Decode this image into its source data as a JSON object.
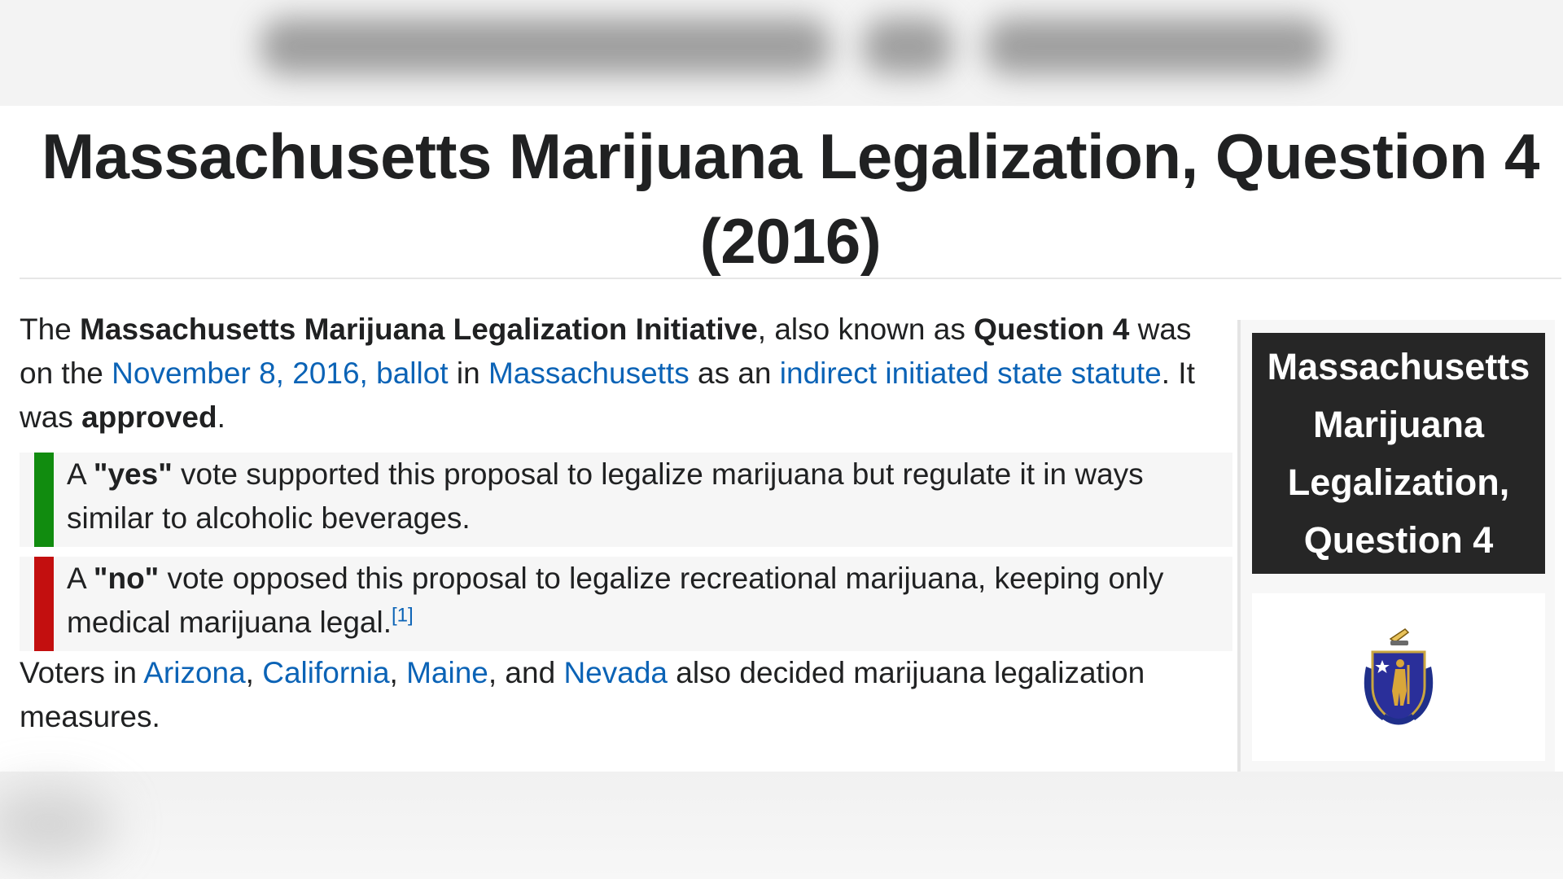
{
  "page": {
    "title": "Massachusetts Marijuana Legalization, Question 4 (2016)"
  },
  "intro": {
    "p1": "The ",
    "b1": "Massachusetts Marijuana Legalization Initiative",
    "p2": ", also known as ",
    "b2": "Question 4",
    "p3": " was on the ",
    "link_ballot": "November 8, 2016, ballot",
    "p4": " in ",
    "link_state": "Massachusetts",
    "p5": " as an ",
    "link_statute": "indirect initiated state statute",
    "p6": ". It was ",
    "b3": "approved",
    "p7": "."
  },
  "yes_box": {
    "lead": "A ",
    "bold": "\"yes\"",
    "text": " vote supported this proposal to legalize marijuana but regulate it in ways similar to alcoholic beverages.",
    "bar_color": "#118c0f"
  },
  "no_box": {
    "lead": "A ",
    "bold": "\"no\"",
    "text": " vote opposed this proposal to legalize recreational marijuana, keeping only medical marijuana legal.",
    "ref": "[1]",
    "bar_color": "#c30f0f"
  },
  "voters": {
    "lead": "Voters in ",
    "state1": "Arizona",
    "sep1": ", ",
    "state2": "California",
    "sep2": ", ",
    "state3": "Maine",
    "sep3": ", and ",
    "state4": "Nevada",
    "tail": " also decided marijuana legalization measures."
  },
  "infobox": {
    "line1": "Massachusetts",
    "line2": "Marijuana",
    "line3": "Legalization,",
    "line4": "Question 4",
    "image_icon": "massachusetts-seal-icon"
  },
  "colors": {
    "link": "#0b63b6",
    "infobox_header_bg": "#262626"
  }
}
